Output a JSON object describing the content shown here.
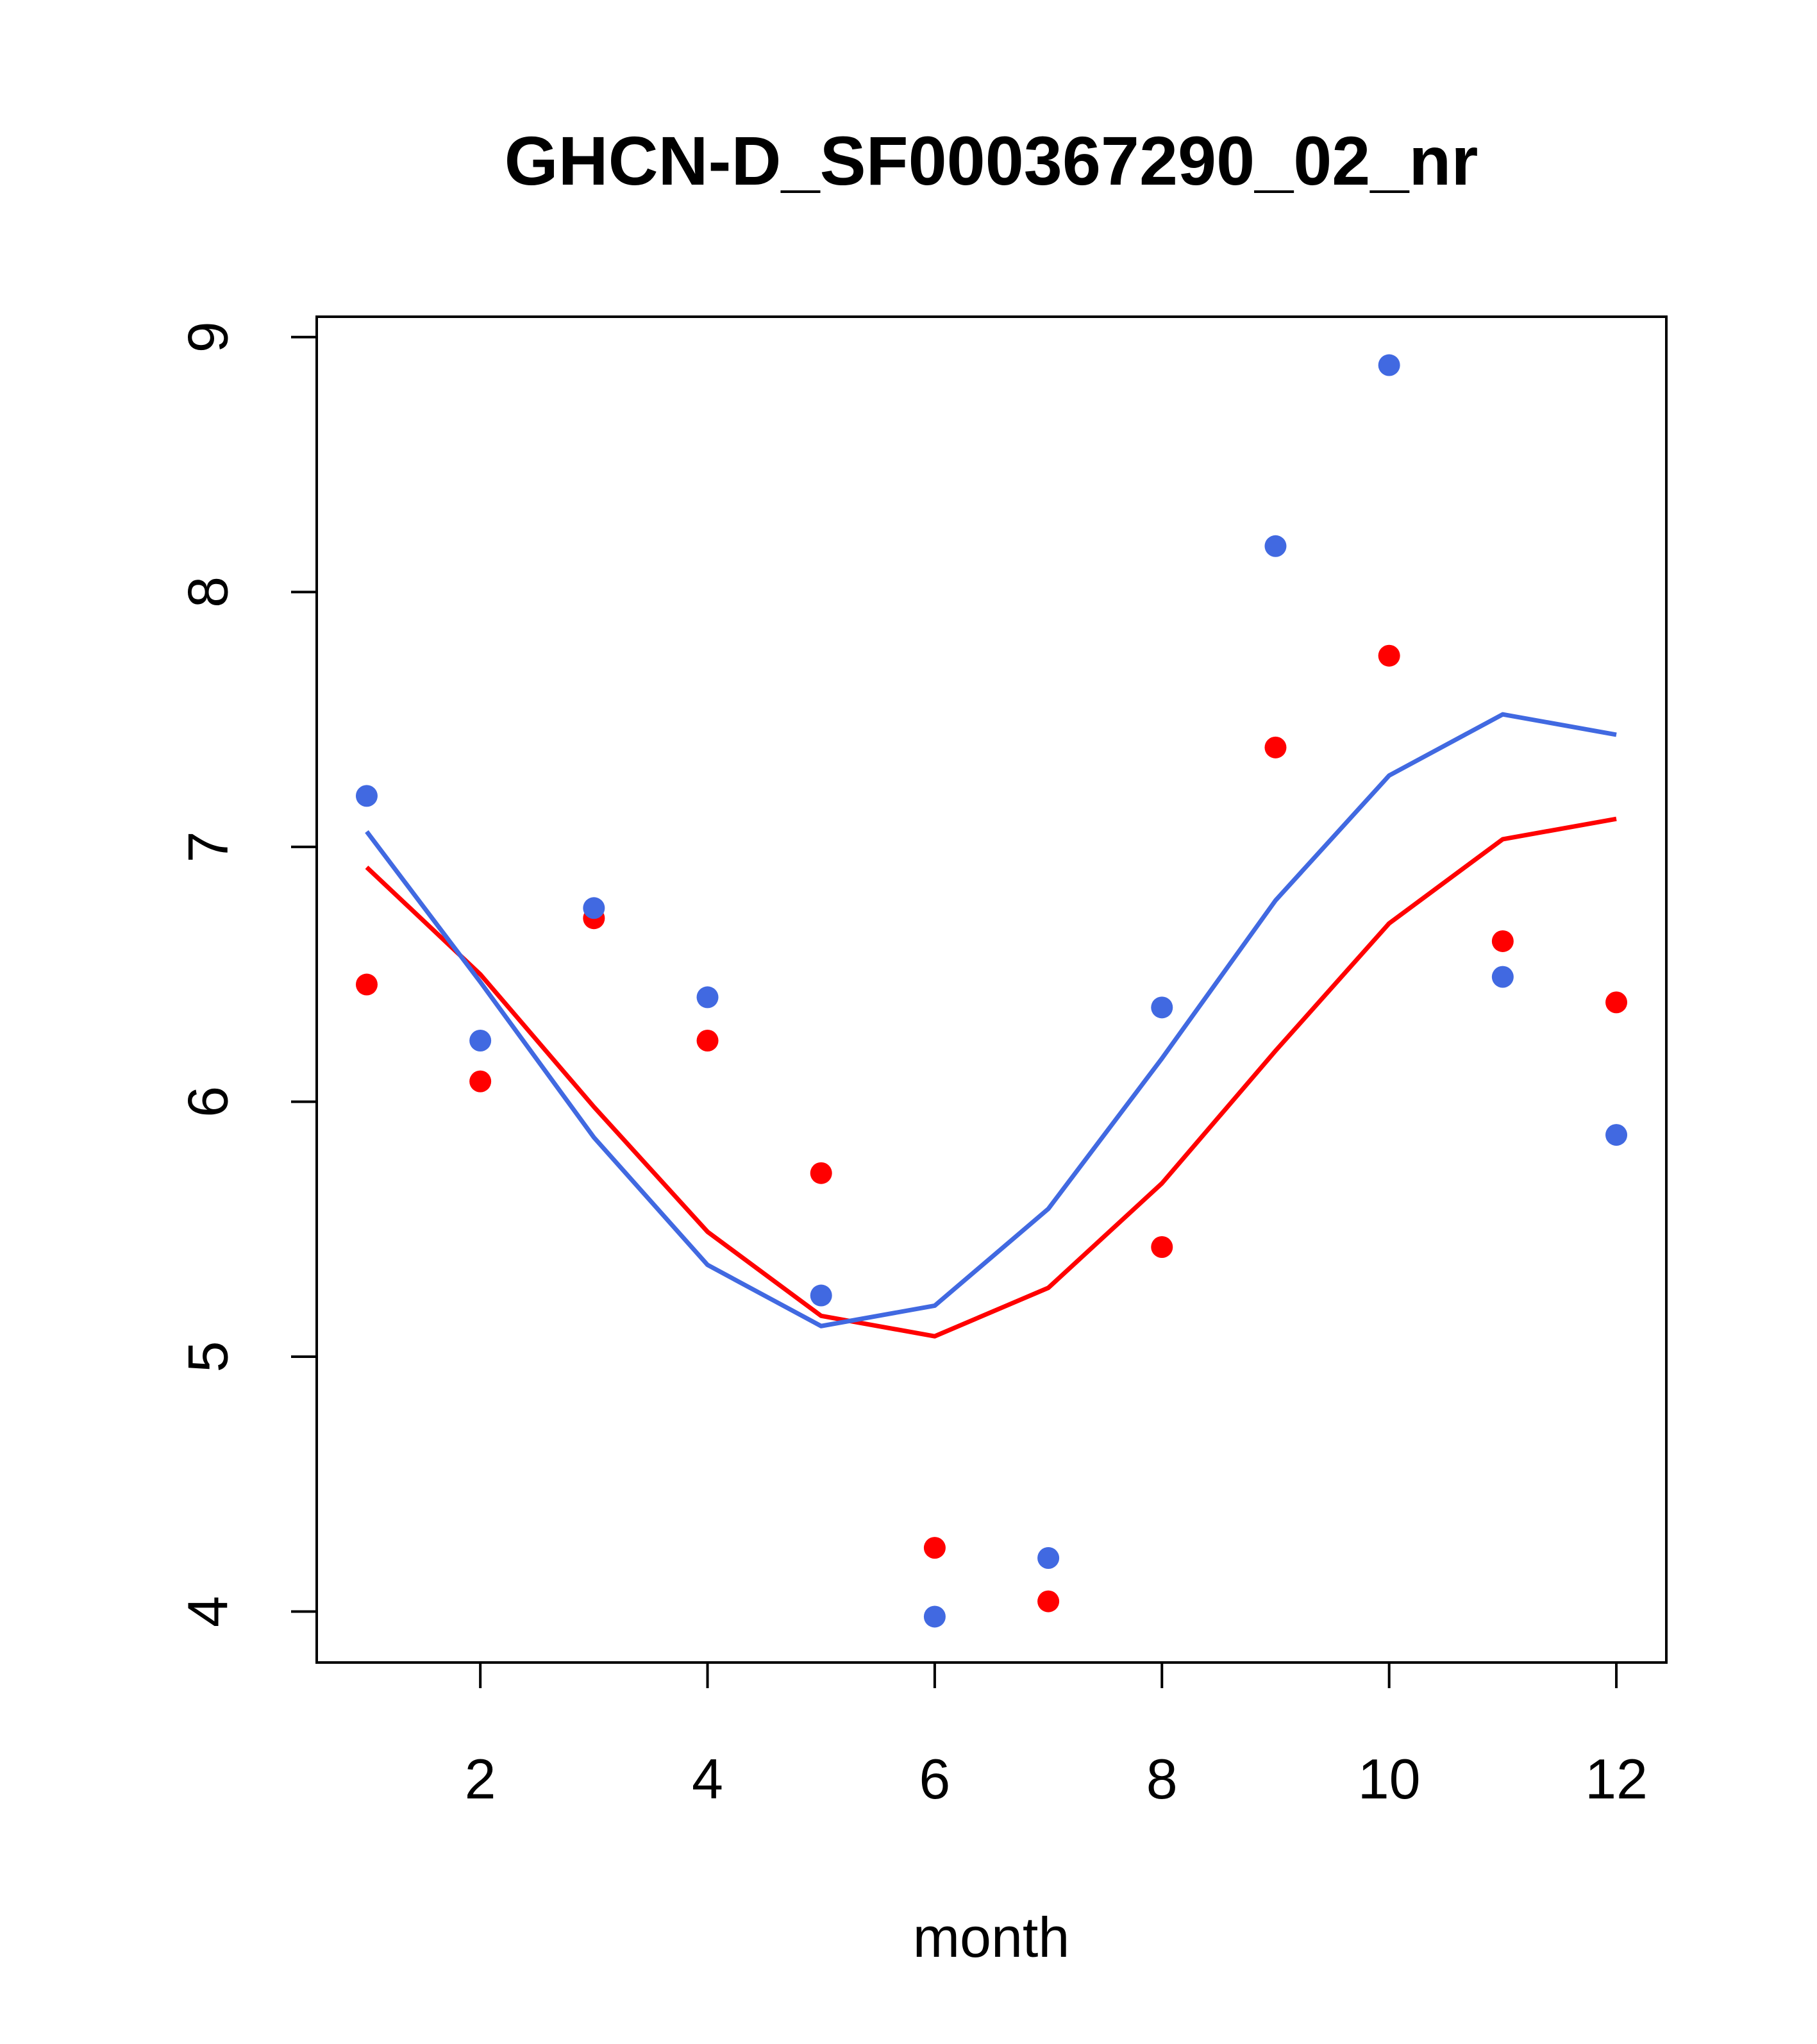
{
  "chart_data": {
    "type": "scatter",
    "title": "GHCN-D_SF000367290_02_nr",
    "xlabel": "month",
    "ylabel": "",
    "xlim": [
      0.56,
      12.44
    ],
    "ylim": [
      3.8,
      9.08
    ],
    "xticks": [
      2,
      4,
      6,
      8,
      10,
      12
    ],
    "yticks": [
      4,
      5,
      6,
      7,
      8,
      9
    ],
    "grid": false,
    "x": [
      1,
      2,
      3,
      4,
      5,
      6,
      7,
      8,
      9,
      10,
      11,
      12
    ],
    "series": [
      {
        "color": "#ff0000",
        "points": [
          6.46,
          6.08,
          6.72,
          6.24,
          5.72,
          4.25,
          4.04,
          5.43,
          7.39,
          7.75,
          6.63,
          6.39
        ],
        "line": [
          6.92,
          6.5,
          5.98,
          5.49,
          5.16,
          5.08,
          5.27,
          5.68,
          6.2,
          6.7,
          7.03,
          7.11
        ]
      },
      {
        "color": "#4169e1",
        "points": [
          7.2,
          6.24,
          6.76,
          6.41,
          5.24,
          3.98,
          4.21,
          6.37,
          8.18,
          8.89,
          6.49,
          5.87
        ],
        "line": [
          7.06,
          6.47,
          5.86,
          5.36,
          5.12,
          5.2,
          5.58,
          6.17,
          6.79,
          7.28,
          7.52,
          7.44
        ]
      }
    ]
  }
}
